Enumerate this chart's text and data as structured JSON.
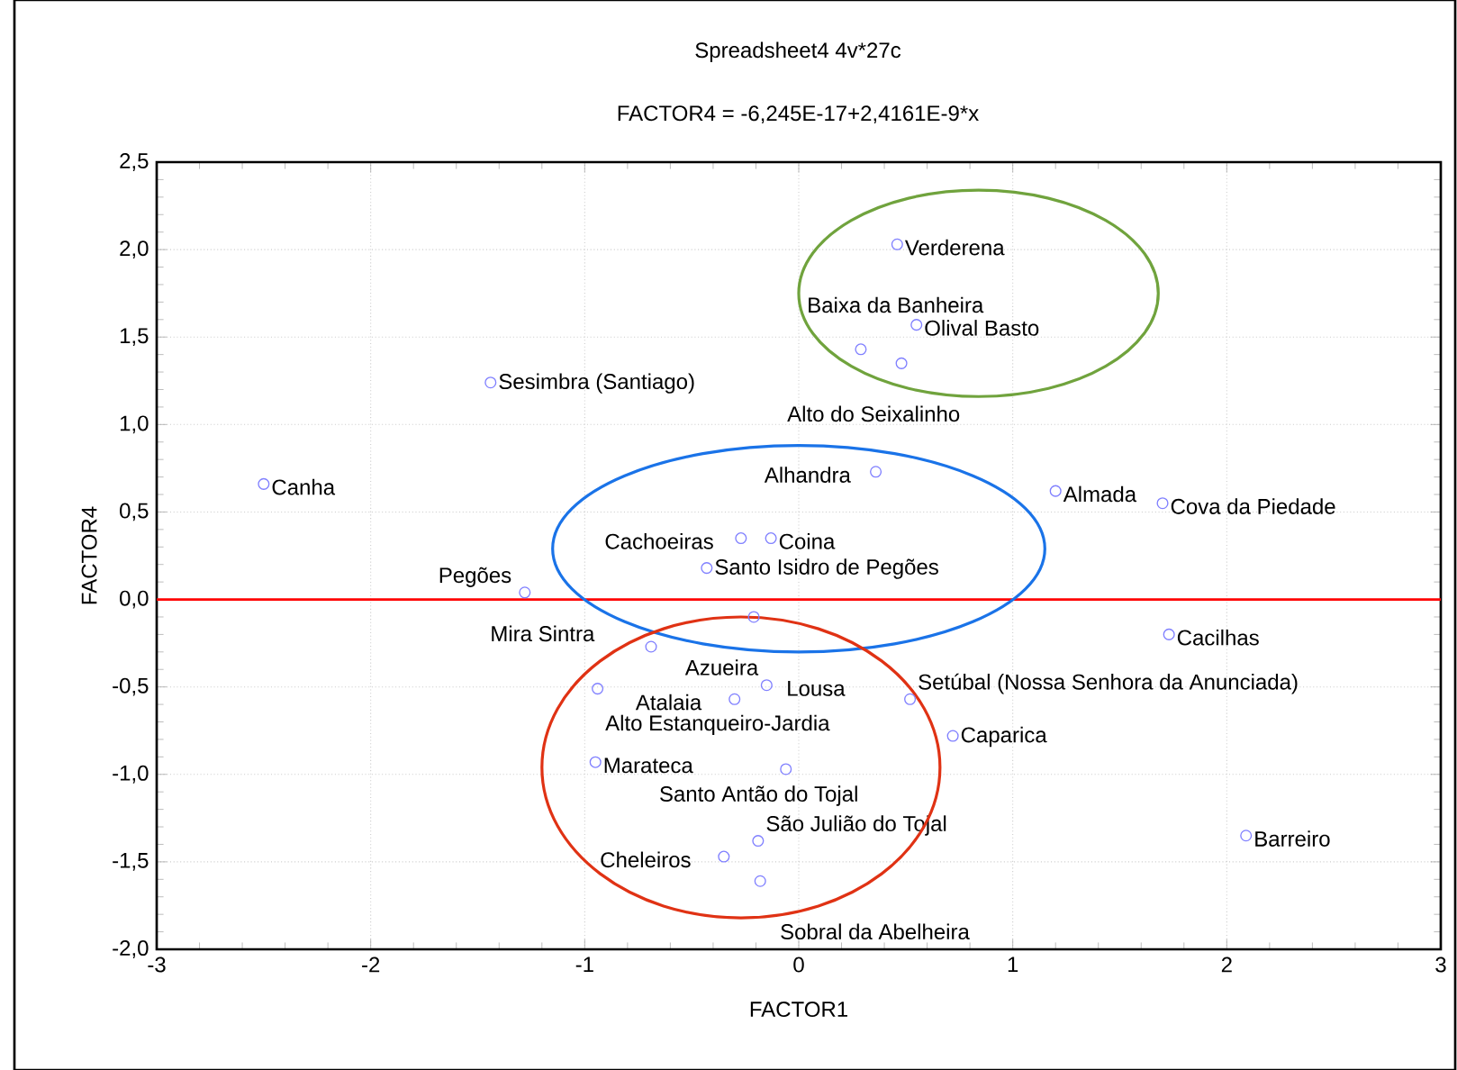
{
  "chart_data": {
    "type": "scatter",
    "title": "Spreadsheet4 4v*27c",
    "subtitle": "FACTOR4  = -6,245E-17+2,4161E-9*x",
    "xlabel": "FACTOR1",
    "ylabel": "FACTOR4",
    "xlim": [
      -3,
      3
    ],
    "ylim": [
      -2,
      2.5
    ],
    "xticks": [
      -3,
      -2,
      -1,
      0,
      1,
      2,
      3
    ],
    "yticks": [
      {
        "value": -2,
        "label": "-2,0"
      },
      {
        "value": -1.5,
        "label": "-1,5"
      },
      {
        "value": -1,
        "label": "-1,0"
      },
      {
        "value": -0.5,
        "label": "-0,5"
      },
      {
        "value": 0,
        "label": "0,0"
      },
      {
        "value": 0.5,
        "label": "0,5"
      },
      {
        "value": 1,
        "label": "1,0"
      },
      {
        "value": 1.5,
        "label": "1,5"
      },
      {
        "value": 2,
        "label": "2,0"
      },
      {
        "value": 2.5,
        "label": "2,5"
      }
    ],
    "grid": true,
    "series": [
      {
        "type": "scatter",
        "color": "#8080ff",
        "marker": "circle",
        "x": [
          -2.5,
          -1.44,
          -1.28,
          -0.43,
          -0.27,
          -0.13,
          0.46,
          0.55,
          0.29,
          0.48,
          0.36,
          1.2,
          1.7,
          -0.21,
          -0.69,
          -0.94,
          -0.3,
          -0.15,
          -0.95,
          -0.06,
          -0.19,
          -0.35,
          -0.18,
          1.73,
          0.52,
          0.72,
          2.09
        ],
        "values": [
          0.66,
          1.24,
          0.04,
          0.18,
          0.35,
          0.35,
          2.03,
          1.57,
          1.43,
          1.35,
          0.73,
          0.62,
          0.55,
          -0.1,
          -0.27,
          -0.51,
          -0.57,
          -0.49,
          -0.93,
          -0.97,
          -1.38,
          -1.47,
          -1.61,
          -0.2,
          -0.57,
          -0.78,
          -1.35
        ]
      },
      {
        "type": "line",
        "color": "#ff0000",
        "x": [
          -3,
          3
        ],
        "values": [
          0,
          0
        ]
      }
    ],
    "annotations": [
      {
        "text": "Canha",
        "x": -2.5,
        "y": 0.66
      },
      {
        "text": "Sesimbra (Santiago)",
        "x": -1.44,
        "y": 1.24
      },
      {
        "text": "Pegões",
        "x": -1.28,
        "y": 0.04
      },
      {
        "text": "Santo Isidro de Pegões",
        "x": -0.43,
        "y": 0.18
      },
      {
        "text": "Cachoeiras",
        "x": -0.27,
        "y": 0.35
      },
      {
        "text": "Coina",
        "x": -0.13,
        "y": 0.35
      },
      {
        "text": "Verderena",
        "x": 0.46,
        "y": 2.03
      },
      {
        "text": "Olival Basto",
        "x": 0.55,
        "y": 1.57
      },
      {
        "text": "Baixa da Banheira",
        "x": 0.29,
        "y": 1.43
      },
      {
        "text": "Alto do Seixalinho",
        "x": 0.48,
        "y": 1.35
      },
      {
        "text": "Alhandra",
        "x": 0.36,
        "y": 0.73
      },
      {
        "text": "Almada",
        "x": 1.2,
        "y": 0.62
      },
      {
        "text": "Cova da Piedade",
        "x": 1.7,
        "y": 0.55
      },
      {
        "text": "Azueira",
        "x": -0.21,
        "y": -0.1
      },
      {
        "text": "Mira Sintra",
        "x": -0.69,
        "y": -0.27
      },
      {
        "text": "Alto Estanqueiro-Jardia",
        "x": -0.94,
        "y": -0.51
      },
      {
        "text": "Atalaia",
        "x": -0.3,
        "y": -0.57
      },
      {
        "text": "Lousa",
        "x": -0.15,
        "y": -0.49
      },
      {
        "text": "Marateca",
        "x": -0.95,
        "y": -0.93
      },
      {
        "text": "Santo Antão do Tojal",
        "x": -0.06,
        "y": -0.97
      },
      {
        "text": "São Julião do Tojal",
        "x": -0.19,
        "y": -1.38
      },
      {
        "text": "Cheleiros",
        "x": -0.35,
        "y": -1.47
      },
      {
        "text": "Sobral da Abelheira",
        "x": -0.18,
        "y": -1.61
      },
      {
        "text": "Cacilhas",
        "x": 1.73,
        "y": -0.2
      },
      {
        "text": "Setúbal (Nossa Senhora da Anunciada)",
        "x": 0.52,
        "y": -0.57
      },
      {
        "text": "Caparica",
        "x": 0.72,
        "y": -0.78
      },
      {
        "text": "Barreiro",
        "x": 2.09,
        "y": -1.35
      }
    ]
  }
}
